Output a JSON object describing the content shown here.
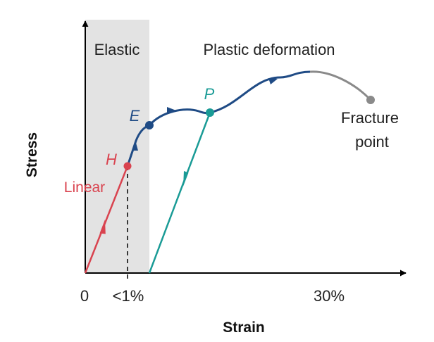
{
  "diagram": {
    "axes": {
      "y_label": "Stress",
      "x_label": "Strain",
      "x_ticks": [
        "0",
        "<1%",
        "30%"
      ]
    },
    "regions": {
      "elastic": "Elastic",
      "plastic": "Plastic deformation"
    },
    "curve_labels": {
      "linear": "Linear"
    },
    "points": {
      "h": "H",
      "e": "E",
      "p": "P",
      "fracture_line1": "Fracture",
      "fracture_line2": "point"
    },
    "colors": {
      "elastic_band": "#e3e3e3",
      "linear": "#d9434f",
      "curve": "#1f4b85",
      "unload": "#1a9b96",
      "fracture": "#8a8a8a",
      "axis": "#000000"
    }
  }
}
